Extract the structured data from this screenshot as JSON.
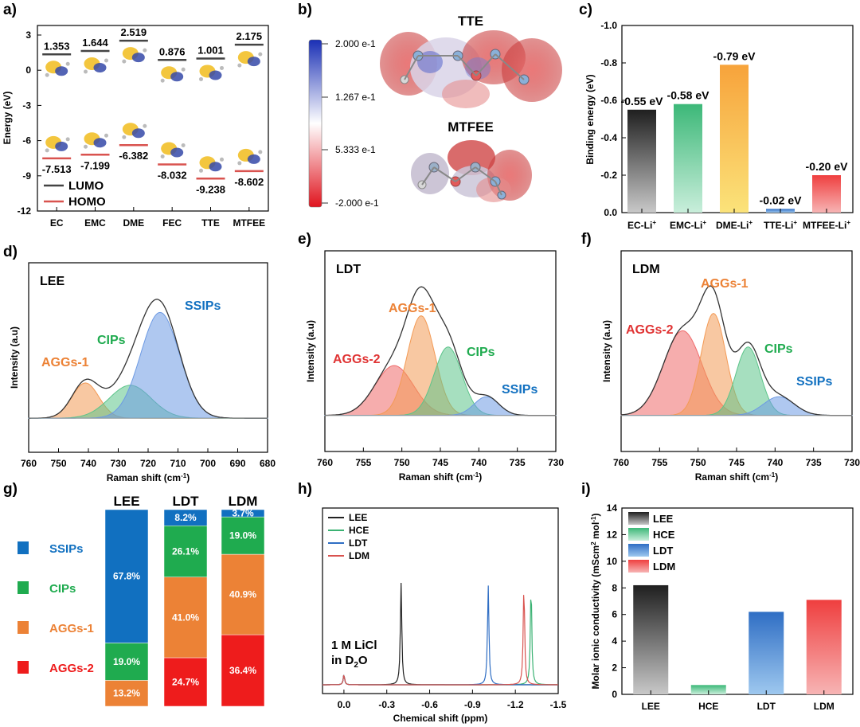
{
  "panels": {
    "a": "a)",
    "b": "b)",
    "c": "c)",
    "d": "d)",
    "e": "e)",
    "f": "f)",
    "g": "g)",
    "h": "h)",
    "i": "i)"
  },
  "colors": {
    "black": "#222222",
    "red": "#d9534f",
    "green": "#3bb273",
    "blue": "#2f6ec4",
    "orange": "#f0883a",
    "yellow": "#f2c029",
    "ssips": "#1170c0",
    "cips": "#1fab4f",
    "aggs1": "#ec8236",
    "aggs2": "#ee1c1c"
  },
  "chart_data": [
    {
      "id": "a",
      "type": "energy-level",
      "ylabel": "Energy (eV)",
      "ylim": [
        -12,
        3
      ],
      "yticks": [
        "3",
        "0",
        "-3",
        "-6",
        "-9",
        "-12"
      ],
      "categories": [
        "EC",
        "EMC",
        "DME",
        "FEC",
        "TTE",
        "MTFEE"
      ],
      "lumo": [
        1.353,
        1.644,
        2.519,
        0.876,
        1.001,
        2.175
      ],
      "homo": [
        -7.513,
        -7.199,
        -6.382,
        -8.032,
        -9.238,
        -8.602
      ],
      "lumo_labels": [
        "1.353",
        "1.644",
        "2.519",
        "0.876",
        "1.001",
        "2.175"
      ],
      "homo_labels": [
        "-7.513",
        "-7.199",
        "-6.382",
        "-8.032",
        "-9.238",
        "-8.602"
      ],
      "legend": [
        "LUMO",
        "HOMO"
      ]
    },
    {
      "id": "b",
      "type": "esp-map",
      "molecules": [
        "TTE",
        "MTFEE"
      ],
      "colorbar": {
        "max": "2.000 e-1",
        "mid1": "1.267 e-1",
        "mid2": "5.333 e-1",
        "min": "-2.000 e-1"
      }
    },
    {
      "id": "c",
      "type": "bar",
      "ylabel": "Binding energy (eV)",
      "ylim": [
        0,
        -1.0
      ],
      "yticks": [
        "-1.0",
        "-0.8",
        "-0.6",
        "-0.4",
        "-0.2",
        "0.0"
      ],
      "categories": [
        "EC-Li+",
        "EMC-Li+",
        "DME-Li+",
        "TTE-Li+",
        "MTFEE-Li+"
      ],
      "values": [
        -0.55,
        -0.58,
        -0.79,
        -0.02,
        -0.2
      ],
      "value_labels": [
        "-0.55 eV",
        "-0.58 eV",
        "-0.79 eV",
        "-0.02 eV",
        "-0.20 eV"
      ]
    },
    {
      "id": "d",
      "type": "area",
      "title": "LEE",
      "xlabel": "Raman shift (cm-1)",
      "ylabel": "Intensity (a.u)",
      "xlim": [
        760,
        680
      ],
      "xticks": [
        "760",
        "750",
        "740",
        "730",
        "720",
        "710",
        "700",
        "690",
        "680"
      ],
      "peaks": [
        {
          "name": "AGGs-1",
          "center": 741,
          "height": 0.3,
          "width": 4.5
        },
        {
          "name": "CIPs",
          "center": 726,
          "height": 0.28,
          "width": 7
        },
        {
          "name": "SSIPs",
          "center": 716,
          "height": 0.9,
          "width": 6.5
        }
      ]
    },
    {
      "id": "e",
      "type": "area",
      "title": "LDT",
      "xlabel": "Raman shift (cm-1)",
      "ylabel": "Intensity (a.u)",
      "xlim": [
        760,
        730
      ],
      "xticks": [
        "760",
        "755",
        "750",
        "745",
        "740",
        "735",
        "730"
      ],
      "peaks": [
        {
          "name": "AGGs-2",
          "center": 751,
          "height": 0.4,
          "width": 2.5
        },
        {
          "name": "AGGs-1",
          "center": 747.5,
          "height": 0.8,
          "width": 1.8
        },
        {
          "name": "CIPs",
          "center": 744,
          "height": 0.55,
          "width": 1.8
        },
        {
          "name": "SSIPs",
          "center": 739,
          "height": 0.15,
          "width": 1.6
        }
      ]
    },
    {
      "id": "f",
      "type": "area",
      "title": "LDM",
      "xlabel": "Raman shift (cm-1)",
      "ylabel": "Intensity (a.u)",
      "xlim": [
        760,
        730
      ],
      "xticks": [
        "760",
        "755",
        "750",
        "745",
        "740",
        "735",
        "730"
      ],
      "peaks": [
        {
          "name": "AGGs-2",
          "center": 752,
          "height": 0.68,
          "width": 2.5
        },
        {
          "name": "AGGs-1",
          "center": 748,
          "height": 0.82,
          "width": 1.6
        },
        {
          "name": "CIPs",
          "center": 743.5,
          "height": 0.55,
          "width": 1.6
        },
        {
          "name": "SSIPs",
          "center": 739.5,
          "height": 0.15,
          "width": 2.0
        }
      ]
    },
    {
      "id": "g",
      "type": "stacked-bar",
      "categories": [
        "LEE",
        "LDT",
        "LDM"
      ],
      "series": [
        {
          "name": "AGGs-2",
          "values": [
            0,
            24.7,
            36.4
          ],
          "labels": [
            "",
            "24.7%",
            "36.4%"
          ]
        },
        {
          "name": "AGGs-1",
          "values": [
            13.2,
            41.0,
            40.9
          ],
          "labels": [
            "13.2%",
            "41.0%",
            "40.9%"
          ]
        },
        {
          "name": "CIPs",
          "values": [
            19.0,
            26.1,
            19.0
          ],
          "labels": [
            "19.0%",
            "26.1%",
            "19.0%"
          ]
        },
        {
          "name": "SSIPs",
          "values": [
            67.8,
            8.2,
            3.7
          ],
          "labels": [
            "67.8%",
            "8.2%",
            "3.7%"
          ]
        }
      ],
      "legend": [
        "SSIPs",
        "CIPs",
        "AGGs-1",
        "AGGs-2"
      ]
    },
    {
      "id": "h",
      "type": "line",
      "xlabel": "Chemical shift (ppm)",
      "xlim": [
        0.15,
        -1.5
      ],
      "xticks": [
        "0.0",
        "-0.3",
        "-0.6",
        "-0.9",
        "-1.2",
        "-1.5"
      ],
      "series": [
        {
          "name": "LEE",
          "peak": -0.4,
          "height": 1.0
        },
        {
          "name": "HCE",
          "peak": -1.31,
          "height": 0.98
        },
        {
          "name": "LDT",
          "peak": -1.01,
          "height": 0.98
        },
        {
          "name": "LDM",
          "peak": -1.26,
          "height": 0.98
        }
      ],
      "reference": {
        "peak": 0.0,
        "height": 0.1
      },
      "annotation": [
        "1 M LiCl",
        "in D",
        "2",
        "O"
      ]
    },
    {
      "id": "i",
      "type": "bar",
      "ylabel": "Molar ionic conductivity (mScm2 mol-1)",
      "ylim": [
        0,
        14
      ],
      "yticks": [
        "0",
        "2",
        "4",
        "6",
        "8",
        "10",
        "12",
        "14"
      ],
      "categories": [
        "LEE",
        "HCE",
        "LDT",
        "LDM"
      ],
      "values": [
        8.2,
        0.7,
        6.2,
        7.1
      ]
    }
  ],
  "text": {
    "a_ylabel": "Energy (eV)",
    "c_ylabel": "Binding energy (eV)",
    "raman_xlabel": "Raman shift (cm",
    "raman_xlabel_sup": "-1",
    "raman_xlabel_end": ")",
    "raman_ylabel": "Intensity (a.u)",
    "h_xlabel": "Chemical shift (ppm)",
    "i_ylabel_a": "Molar ionic conductivity (mScm",
    "i_ylabel_sup": "2",
    "i_ylabel_b": " mol",
    "i_ylabel_sup2": "-1",
    "i_ylabel_c": ")"
  }
}
